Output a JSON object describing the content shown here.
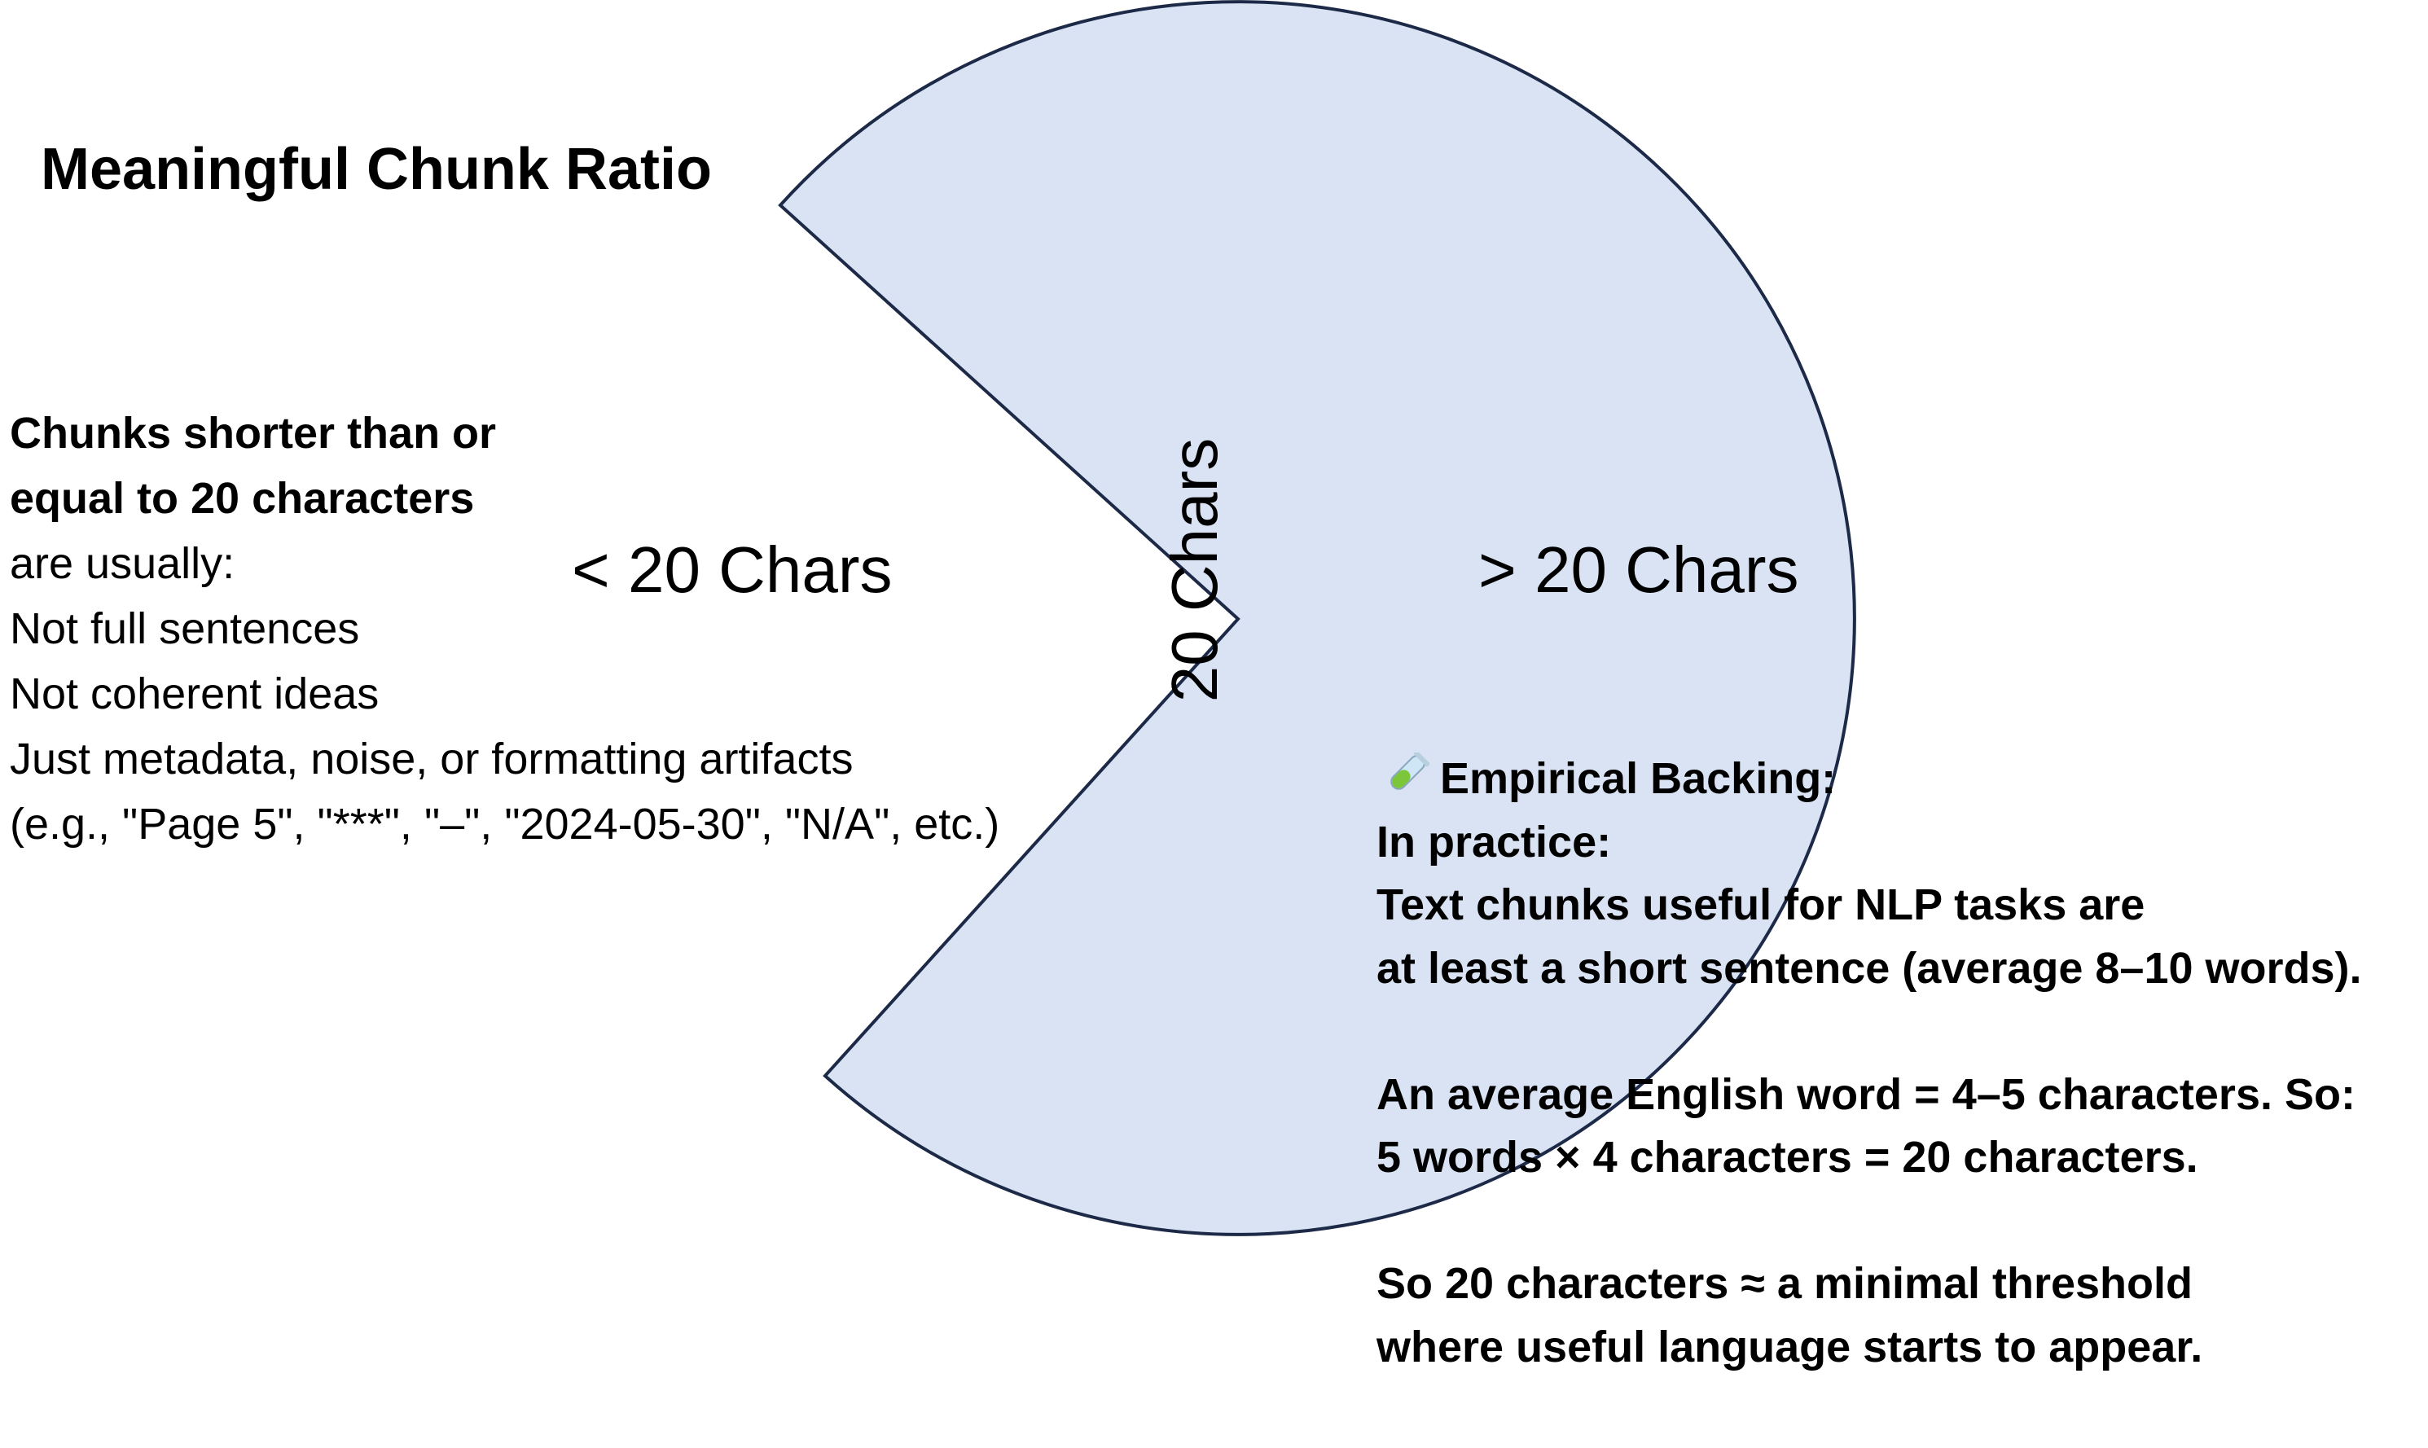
{
  "title": "Meaningful Chunk Ratio",
  "colors": {
    "wedge_fill": "#d9e3f3",
    "wedge_stroke": "#1c2a48",
    "text": "#000000",
    "icon_liquid": "#7cc63b",
    "icon_glass": "#cfe6f7"
  },
  "pie": {
    "labels": {
      "less": "< 20 Chars",
      "threshold": "20 Chars",
      "more": "> 20 Chars"
    }
  },
  "left_note": {
    "bold_line_1": "Chunks shorter than or",
    "bold_line_2": "equal to 20 characters",
    "line_3": "are usually:",
    "line_4": "Not full sentences",
    "line_5": "Not coherent ideas",
    "line_6": "Just metadata, noise, or formatting artifacts",
    "line_7": "(e.g., \"Page 5\", \"***\", \"–\", \"2024-05-30\", \"N/A\", etc.)"
  },
  "right_note": {
    "icon": "test-tube-icon",
    "heading": "Empirical Backing:",
    "line_2": "In practice:",
    "line_3": "Text chunks useful for NLP tasks are",
    "line_4": "at least a short sentence (average 8–10 words).",
    "line_6": "An average English word = 4–5 characters. So:",
    "line_7": "5 words × 4 characters = 20 characters.",
    "line_9": "So 20 characters ≈ a minimal threshold",
    "line_10": "where useful language starts to appear."
  }
}
